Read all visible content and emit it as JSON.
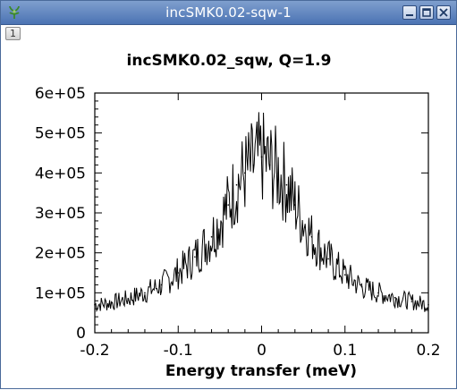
{
  "window": {
    "title": "incSMK0.02-sqw-1",
    "tab_label": "1",
    "icons": [
      "app-icon",
      "minimize-icon",
      "maximize-icon",
      "close-icon"
    ]
  },
  "chart_data": {
    "type": "line",
    "title": "incSMK0.02_sqw, Q=1.9",
    "xlabel": "Energy transfer (meV)",
    "ylabel": "",
    "xlim": [
      -0.2,
      0.2
    ],
    "ylim": [
      0,
      600000
    ],
    "x_tick_labels": [
      "-0.2",
      "-0.1",
      "0",
      "0.1",
      "0.2"
    ],
    "y_tick_labels": [
      "0",
      "1e+05",
      "2e+05",
      "3e+05",
      "4e+05",
      "5e+05",
      "6e+05"
    ],
    "x": [
      -0.2,
      -0.18,
      -0.16,
      -0.14,
      -0.12,
      -0.1,
      -0.08,
      -0.06,
      -0.04,
      -0.03,
      -0.02,
      -0.01,
      0.0,
      0.01,
      0.02,
      0.03,
      0.04,
      0.06,
      0.08,
      0.1,
      0.12,
      0.14,
      0.16,
      0.18,
      0.2
    ],
    "y": [
      70000,
      75000,
      85000,
      100000,
      120000,
      150000,
      190000,
      240000,
      320000,
      370000,
      400000,
      420000,
      440000,
      420000,
      400000,
      370000,
      320000,
      240000,
      185000,
      145000,
      115000,
      100000,
      88000,
      78000,
      70000
    ],
    "grid": false,
    "line_color": "#000000",
    "series": [
      {
        "name": "",
        "color": "#000000"
      }
    ]
  }
}
